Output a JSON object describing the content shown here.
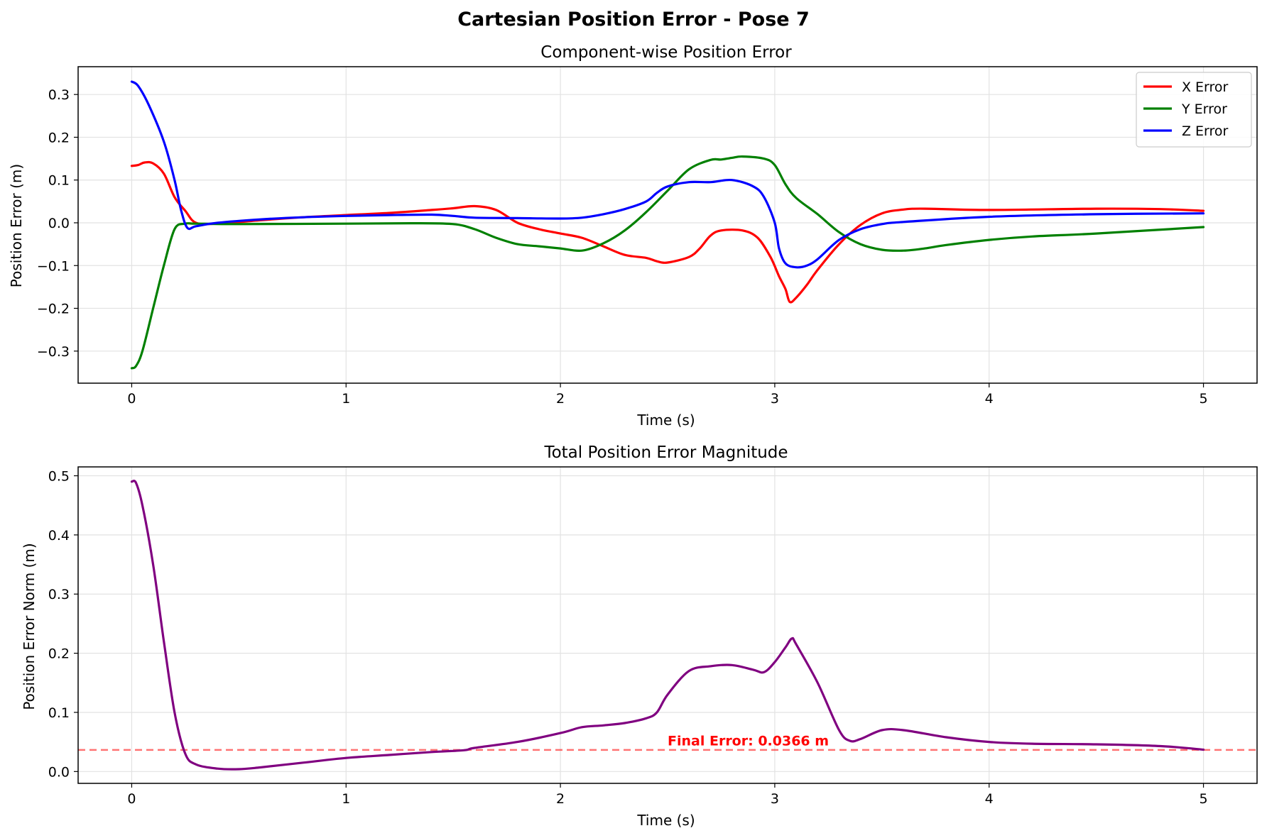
{
  "figure": {
    "suptitle": "Cartesian Position Error - Pose 7"
  },
  "chart_data": [
    {
      "type": "line",
      "title": "Component-wise Position Error",
      "xlabel": "Time (s)",
      "ylabel": "Position Error (m)",
      "xlim": [
        -0.25,
        5.25
      ],
      "ylim": [
        -0.375,
        0.365
      ],
      "xticks": [
        0,
        1,
        2,
        3,
        4,
        5
      ],
      "xtick_labels": [
        "0",
        "1",
        "2",
        "3",
        "4",
        "5"
      ],
      "yticks": [
        -0.3,
        -0.2,
        -0.1,
        0.0,
        0.1,
        0.2,
        0.3
      ],
      "ytick_labels": [
        "−0.3",
        "−0.2",
        "−0.1",
        "0.0",
        "0.1",
        "0.2",
        "0.3"
      ],
      "grid": true,
      "legend_position": "top-right",
      "series": [
        {
          "name": "X Error",
          "color": "#ff0000",
          "points": [
            [
              0,
              0.133
            ],
            [
              0.03,
              0.135
            ],
            [
              0.06,
              0.141
            ],
            [
              0.1,
              0.139
            ],
            [
              0.15,
              0.115
            ],
            [
              0.2,
              0.06
            ],
            [
              0.25,
              0.028
            ],
            [
              0.3,
              0.0
            ],
            [
              0.4,
              -0.002
            ],
            [
              0.6,
              0.006
            ],
            [
              0.8,
              0.013
            ],
            [
              1.0,
              0.018
            ],
            [
              1.2,
              0.023
            ],
            [
              1.4,
              0.03
            ],
            [
              1.5,
              0.034
            ],
            [
              1.6,
              0.039
            ],
            [
              1.7,
              0.03
            ],
            [
              1.8,
              0.0
            ],
            [
              1.9,
              -0.015
            ],
            [
              2.0,
              -0.025
            ],
            [
              2.1,
              -0.035
            ],
            [
              2.2,
              -0.055
            ],
            [
              2.3,
              -0.075
            ],
            [
              2.4,
              -0.082
            ],
            [
              2.45,
              -0.09
            ],
            [
              2.5,
              -0.093
            ],
            [
              2.6,
              -0.08
            ],
            [
              2.65,
              -0.06
            ],
            [
              2.7,
              -0.03
            ],
            [
              2.75,
              -0.018
            ],
            [
              2.85,
              -0.018
            ],
            [
              2.92,
              -0.035
            ],
            [
              2.98,
              -0.08
            ],
            [
              3.02,
              -0.125
            ],
            [
              3.05,
              -0.155
            ],
            [
              3.07,
              -0.185
            ],
            [
              3.1,
              -0.175
            ],
            [
              3.15,
              -0.145
            ],
            [
              3.2,
              -0.11
            ],
            [
              3.3,
              -0.05
            ],
            [
              3.4,
              -0.005
            ],
            [
              3.5,
              0.022
            ],
            [
              3.6,
              0.031
            ],
            [
              3.7,
              0.033
            ],
            [
              4.0,
              0.03
            ],
            [
              4.5,
              0.033
            ],
            [
              4.8,
              0.032
            ],
            [
              5.0,
              0.028
            ]
          ]
        },
        {
          "name": "Y Error",
          "color": "#008000",
          "points": [
            [
              0,
              -0.34
            ],
            [
              0.02,
              -0.335
            ],
            [
              0.05,
              -0.3
            ],
            [
              0.1,
              -0.2
            ],
            [
              0.15,
              -0.1
            ],
            [
              0.2,
              -0.015
            ],
            [
              0.25,
              -0.002
            ],
            [
              0.3,
              -0.002
            ],
            [
              0.5,
              -0.003
            ],
            [
              1.0,
              -0.002
            ],
            [
              1.3,
              -0.001
            ],
            [
              1.5,
              -0.003
            ],
            [
              1.6,
              -0.015
            ],
            [
              1.7,
              -0.035
            ],
            [
              1.8,
              -0.05
            ],
            [
              1.9,
              -0.055
            ],
            [
              2.0,
              -0.06
            ],
            [
              2.1,
              -0.065
            ],
            [
              2.2,
              -0.048
            ],
            [
              2.3,
              -0.018
            ],
            [
              2.4,
              0.025
            ],
            [
              2.5,
              0.075
            ],
            [
              2.6,
              0.125
            ],
            [
              2.7,
              0.147
            ],
            [
              2.75,
              0.148
            ],
            [
              2.8,
              0.152
            ],
            [
              2.85,
              0.155
            ],
            [
              2.95,
              0.15
            ],
            [
              3.0,
              0.135
            ],
            [
              3.05,
              0.09
            ],
            [
              3.1,
              0.058
            ],
            [
              3.2,
              0.02
            ],
            [
              3.3,
              -0.022
            ],
            [
              3.4,
              -0.05
            ],
            [
              3.5,
              -0.063
            ],
            [
              3.6,
              -0.065
            ],
            [
              3.7,
              -0.06
            ],
            [
              3.8,
              -0.052
            ],
            [
              4.0,
              -0.04
            ],
            [
              4.2,
              -0.032
            ],
            [
              4.5,
              -0.025
            ],
            [
              5.0,
              -0.01
            ]
          ]
        },
        {
          "name": "Z Error",
          "color": "#0000ff",
          "points": [
            [
              0,
              0.33
            ],
            [
              0.03,
              0.32
            ],
            [
              0.08,
              0.275
            ],
            [
              0.15,
              0.19
            ],
            [
              0.2,
              0.1
            ],
            [
              0.23,
              0.03
            ],
            [
              0.26,
              -0.012
            ],
            [
              0.3,
              -0.008
            ],
            [
              0.4,
              0.0
            ],
            [
              0.6,
              0.008
            ],
            [
              0.8,
              0.013
            ],
            [
              1.0,
              0.016
            ],
            [
              1.2,
              0.018
            ],
            [
              1.4,
              0.019
            ],
            [
              1.5,
              0.016
            ],
            [
              1.6,
              0.012
            ],
            [
              1.8,
              0.011
            ],
            [
              2.0,
              0.01
            ],
            [
              2.1,
              0.012
            ],
            [
              2.2,
              0.02
            ],
            [
              2.3,
              0.032
            ],
            [
              2.4,
              0.05
            ],
            [
              2.45,
              0.07
            ],
            [
              2.5,
              0.085
            ],
            [
              2.6,
              0.095
            ],
            [
              2.7,
              0.095
            ],
            [
              2.8,
              0.1
            ],
            [
              2.9,
              0.085
            ],
            [
              2.95,
              0.06
            ],
            [
              3.0,
              0.0
            ],
            [
              3.02,
              -0.06
            ],
            [
              3.05,
              -0.095
            ],
            [
              3.1,
              -0.104
            ],
            [
              3.15,
              -0.1
            ],
            [
              3.2,
              -0.085
            ],
            [
              3.3,
              -0.04
            ],
            [
              3.4,
              -0.015
            ],
            [
              3.5,
              -0.003
            ],
            [
              3.6,
              0.002
            ],
            [
              4.0,
              0.014
            ],
            [
              4.5,
              0.02
            ],
            [
              5.0,
              0.022
            ]
          ]
        }
      ]
    },
    {
      "type": "line",
      "title": "Total Position Error Magnitude",
      "xlabel": "Time (s)",
      "ylabel": "Position Error Norm (m)",
      "xlim": [
        -0.25,
        5.25
      ],
      "ylim": [
        -0.02,
        0.515
      ],
      "xticks": [
        0,
        1,
        2,
        3,
        4,
        5
      ],
      "xtick_labels": [
        "0",
        "1",
        "2",
        "3",
        "4",
        "5"
      ],
      "yticks": [
        0.0,
        0.1,
        0.2,
        0.3,
        0.4,
        0.5
      ],
      "ytick_labels": [
        "0.0",
        "0.1",
        "0.2",
        "0.3",
        "0.4",
        "0.5"
      ],
      "grid": true,
      "series": [
        {
          "color": "#800080",
          "points": [
            [
              0,
              0.49
            ],
            [
              0.02,
              0.488
            ],
            [
              0.05,
              0.45
            ],
            [
              0.1,
              0.35
            ],
            [
              0.15,
              0.22
            ],
            [
              0.2,
              0.1
            ],
            [
              0.25,
              0.03
            ],
            [
              0.3,
              0.012
            ],
            [
              0.4,
              0.005
            ],
            [
              0.5,
              0.004
            ],
            [
              0.6,
              0.007
            ],
            [
              0.8,
              0.015
            ],
            [
              1.0,
              0.023
            ],
            [
              1.2,
              0.028
            ],
            [
              1.4,
              0.033
            ],
            [
              1.55,
              0.036
            ],
            [
              1.6,
              0.04
            ],
            [
              1.8,
              0.05
            ],
            [
              2.0,
              0.065
            ],
            [
              2.1,
              0.075
            ],
            [
              2.2,
              0.078
            ],
            [
              2.3,
              0.082
            ],
            [
              2.4,
              0.09
            ],
            [
              2.45,
              0.1
            ],
            [
              2.5,
              0.13
            ],
            [
              2.6,
              0.17
            ],
            [
              2.7,
              0.178
            ],
            [
              2.8,
              0.18
            ],
            [
              2.9,
              0.172
            ],
            [
              2.95,
              0.168
            ],
            [
              3.0,
              0.185
            ],
            [
              3.05,
              0.21
            ],
            [
              3.08,
              0.225
            ],
            [
              3.1,
              0.215
            ],
            [
              3.2,
              0.15
            ],
            [
              3.3,
              0.07
            ],
            [
              3.35,
              0.052
            ],
            [
              3.4,
              0.055
            ],
            [
              3.5,
              0.07
            ],
            [
              3.6,
              0.07
            ],
            [
              3.8,
              0.058
            ],
            [
              4.0,
              0.05
            ],
            [
              4.2,
              0.047
            ],
            [
              4.5,
              0.046
            ],
            [
              4.8,
              0.043
            ],
            [
              5.0,
              0.037
            ]
          ]
        }
      ],
      "reference_line": {
        "y": 0.0366,
        "color": "#ff0000",
        "style": "dashed"
      },
      "annotation": {
        "text": "Final Error: 0.0366 m",
        "x": 2.5,
        "y": 0.044,
        "color": "#ff0000"
      }
    }
  ]
}
